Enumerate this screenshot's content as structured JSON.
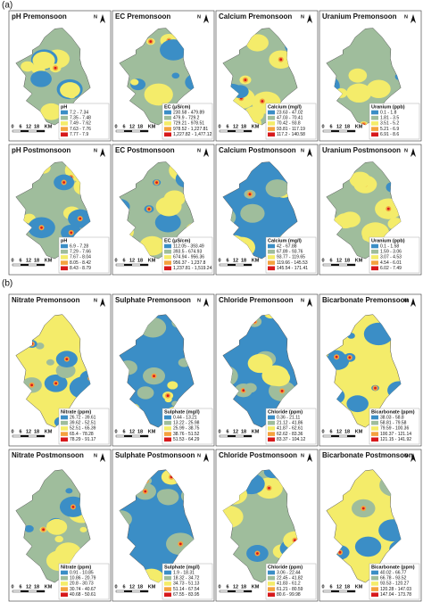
{
  "sections": [
    {
      "label": "(a)",
      "panels": [
        {
          "title": "pH Premonsoon",
          "legend_title": "pH",
          "classes": [
            "7.2 - 7.34",
            "7.35 - 7.48",
            "7.49 - 7.62",
            "7.63 - 7.76",
            "7.77 - 7.9"
          ]
        },
        {
          "title": "EC Premonsoon",
          "legend_title": "EC (μS/cm)",
          "classes": [
            "230.58 - 479.89",
            "479.9 - 729.2",
            "729.21 - 978.51",
            "978.52 - 1,227.81",
            "1,227.82 - 1,477.12"
          ]
        },
        {
          "title": "Calcium Premonsoon",
          "legend_title": "Calcium (mg/l)",
          "classes": [
            "23.63 - 47.02",
            "47.03 - 70.41",
            "70.42 - 93.8",
            "93.81 - 117.19",
            "117.2 - 140.58"
          ]
        },
        {
          "title": "Uranium Premonsoon",
          "legend_title": "Uranium (ppb)",
          "classes": [
            "0.1 - 1.8",
            "1.81 - 3.5",
            "3.51 - 5.2",
            "5.21 - 6.9",
            "6.91 - 8.6"
          ]
        },
        {
          "title": "pH Postmonsoon",
          "legend_title": "pH",
          "classes": [
            "6.9 - 7.28",
            "7.29 - 7.66",
            "7.67 - 8.04",
            "8.05 - 8.42",
            "8.43 - 8.79"
          ]
        },
        {
          "title": "EC Postmonsoon",
          "legend_title": "EC (μS/cm)",
          "classes": [
            "112.05 - 393.49",
            "393.5 - 674.93",
            "674.94 - 956.36",
            "956.37 - 1,237.8",
            "1,237.81 - 1,519.24"
          ]
        },
        {
          "title": "Calcium Postmonsoon",
          "legend_title": "Calcium (mg/l)",
          "classes": [
            "42 - 67.88",
            "67.89 - 93.76",
            "93.77 - 119.65",
            "119.66 - 145.53",
            "145.54 - 171.41"
          ]
        },
        {
          "title": "Uranium Postmonsoon",
          "legend_title": "Uranium (ppb)",
          "classes": [
            "0.1 - 1.58",
            "1.59 - 3.06",
            "3.07 - 4.53",
            "4.54 - 6.01",
            "6.02 - 7.49"
          ]
        }
      ]
    },
    {
      "label": "(b)",
      "panels": [
        {
          "title": "Nitrate Premonsoon",
          "legend_title": "Nitrate (ppm)",
          "classes": [
            "26.72 - 39.61",
            "39.62 - 52.51",
            "52.51 - 65.39",
            "65.4 - 78.28",
            "78.29 - 91.17"
          ]
        },
        {
          "title": "Sulphate Premonsoon",
          "legend_title": "Sulphate (mg/l)",
          "classes": [
            "0.44 - 13.21",
            "13.22 - 25.98",
            "25.99 - 38.75",
            "38.76 - 51.52",
            "51.53 - 64.29"
          ]
        },
        {
          "title": "Chloride Premonsoon",
          "legend_title": "Chloride (ppm)",
          "classes": [
            "0.36 - 21.11",
            "21.12 - 41.86",
            "41.87 - 62.61",
            "62.62 - 83.36",
            "83.37 - 104.12"
          ]
        },
        {
          "title": "Bicarbonate Premonsoon",
          "legend_title": "Bicarbonate (ppm)",
          "classes": [
            "38.03 - 58.8",
            "58.81 - 79.58",
            "79.59 - 100.36",
            "100.37 - 121.14",
            "121.15 - 141.92"
          ]
        },
        {
          "title": "Nitrate Postmonsoon",
          "legend_title": "Nitrate (ppm)",
          "classes": [
            "0.91 - 10.85",
            "10.86 - 20.79",
            "20.8 - 30.73",
            "30.74 - 40.67",
            "40.68 - 50.61"
          ]
        },
        {
          "title": "Sulphate Postmonsoon",
          "legend_title": "Sulphate (mg/l)",
          "classes": [
            "1.9 - 18.31",
            "18.32 - 34.72",
            "34.73 - 51.13",
            "51.14 - 67.54",
            "67.55 - 83.95"
          ]
        },
        {
          "title": "Chloride Postmonsoon",
          "legend_title": "Chloride (ppm)",
          "classes": [
            "3.06 - 22.44",
            "22.45 - 41.82",
            "41.83 - 61.2",
            "61.21 - 80.59",
            "80.6 - 99.98"
          ]
        },
        {
          "title": "Bicarbonate Postmonsoon",
          "legend_title": "Bicarbonate (ppm)",
          "classes": [
            "40.02 - 66.77",
            "66.78 - 93.52",
            "93.53 - 120.27",
            "120.28 - 147.03",
            "147.04 - 173.78"
          ]
        }
      ]
    }
  ],
  "class_colors": [
    "#3b8ec6",
    "#9fbd9c",
    "#f4ec6a",
    "#f4a23f",
    "#d7191c"
  ],
  "scale_bar": [
    "0",
    "6",
    "12",
    "18",
    "KM"
  ],
  "north": "N"
}
